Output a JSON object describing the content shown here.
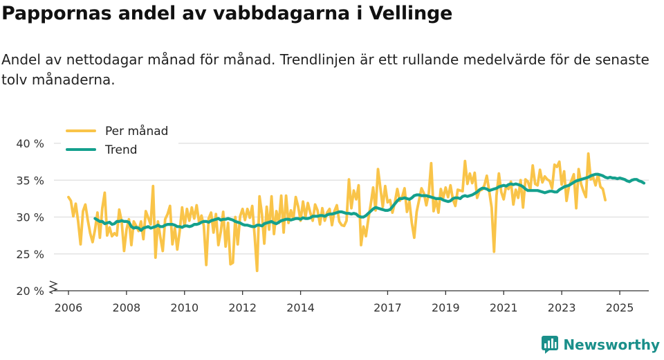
{
  "title": "Pappornas andel av vabbdagarna i Vellinge",
  "subtitle": "Andel av nettodagar månad för månad. Trendlinjen är ett rullande medelvärde för de senaste tolv månaderna.",
  "brand": "Newsworthy",
  "chart_data": {
    "type": "line",
    "title": "Pappornas andel av vabbdagarna i Vellinge",
    "xlabel": "",
    "ylabel": "",
    "ylim": [
      20,
      40
    ],
    "y_break_below": 20,
    "y_ticks": [
      20,
      25,
      30,
      35,
      40
    ],
    "y_tick_suffix": " %",
    "x_range": [
      2005.5,
      2026.0
    ],
    "x_ticks": [
      2006,
      2008,
      2010,
      2012,
      2014,
      2017,
      2019,
      2021,
      2023,
      2025
    ],
    "legend_position": "top-left",
    "colors": {
      "monthly": "#f9c449",
      "trend": "#14a08d",
      "grid": "#dedede",
      "axis": "#333333"
    },
    "series": [
      {
        "name": "Per månad",
        "start": 2006.0,
        "step_months": 1,
        "values": [
          32.7,
          32.2,
          30.1,
          31.8,
          29.4,
          26.3,
          30.8,
          31.7,
          29.6,
          27.8,
          26.6,
          28.3,
          30.6,
          27.2,
          31.2,
          33.3,
          27.5,
          28.6,
          27.4,
          27.8,
          27.5,
          31.0,
          29.4,
          25.4,
          28.3,
          29.7,
          26.2,
          29.4,
          28.8,
          28.1,
          29.4,
          27.0,
          30.8,
          29.9,
          29.0,
          34.2,
          24.5,
          29.4,
          27.3,
          25.4,
          29.7,
          30.4,
          31.5,
          26.3,
          28.5,
          25.6,
          28.1,
          31.3,
          28.7,
          31.1,
          29.5,
          31.3,
          29.8,
          31.6,
          29.3,
          30.2,
          28.8,
          23.5,
          29.8,
          30.6,
          27.9,
          30.4,
          26.2,
          28.0,
          30.7,
          26.0,
          29.2,
          23.6,
          23.8,
          30.0,
          26.3,
          30.1,
          31.1,
          29.6,
          31.1,
          29.9,
          31.5,
          27.4,
          22.7,
          32.8,
          30.4,
          26.4,
          31.4,
          28.3,
          32.8,
          27.7,
          30.8,
          29.2,
          32.9,
          27.9,
          32.9,
          29.2,
          30.9,
          29.7,
          32.7,
          31.4,
          29.5,
          32.1,
          30.0,
          31.9,
          30.6,
          29.5,
          31.7,
          30.9,
          29.0,
          31.2,
          29.5,
          30.6,
          31.1,
          28.9,
          30.8,
          31.6,
          29.4,
          28.9,
          28.8,
          29.5,
          35.1,
          31.2,
          33.6,
          32.4,
          34.3,
          26.2,
          28.7,
          27.4,
          29.7,
          31.7,
          34.0,
          30.9,
          36.5,
          33.9,
          31.4,
          34.2,
          32.0,
          32.3,
          30.6,
          32.0,
          33.8,
          32.2,
          32.7,
          33.9,
          30.7,
          32.1,
          29.2,
          27.2,
          30.7,
          32.3,
          33.9,
          33.2,
          31.6,
          33.2,
          37.3,
          30.8,
          32.3,
          30.6,
          33.8,
          32.6,
          34.0,
          32.7,
          34.3,
          32.4,
          31.5,
          33.7,
          33.6,
          33.5,
          37.6,
          34.5,
          35.9,
          34.6,
          36.0,
          32.6,
          33.6,
          33.7,
          34.3,
          35.6,
          33.5,
          31.3,
          25.3,
          32.9,
          35.9,
          33.4,
          32.4,
          34.2,
          33.8,
          34.8,
          31.7,
          33.7,
          32.6,
          35.0,
          31.3,
          35.1,
          34.8,
          33.7,
          37.0,
          34.5,
          34.3,
          36.4,
          34.7,
          35.5,
          35.1,
          34.9,
          33.9,
          37.1,
          36.8,
          37.5,
          34.4,
          36.2,
          32.2,
          34.2,
          34.9,
          35.8,
          31.2,
          36.5,
          34.5,
          33.5,
          32.7,
          38.6,
          35.1,
          35.4,
          34.3,
          35.8,
          34.1,
          33.8,
          32.3
        ]
      },
      {
        "name": "Trend",
        "start": 2006.917,
        "step_months": 1,
        "values": [
          29.8,
          29.6,
          29.4,
          29.4,
          29.1,
          29.2,
          29.3,
          29.0,
          29.1,
          29.4,
          29.4,
          29.5,
          29.4,
          29.4,
          29.3,
          28.7,
          28.5,
          28.6,
          28.5,
          28.2,
          28.5,
          28.6,
          28.7,
          28.5,
          28.6,
          28.7,
          28.9,
          28.7,
          28.7,
          28.9,
          29.0,
          29.0,
          29.0,
          28.9,
          28.7,
          28.7,
          28.6,
          28.8,
          28.8,
          28.7,
          28.8,
          29.0,
          29.0,
          29.1,
          29.3,
          29.4,
          29.4,
          29.3,
          29.5,
          29.6,
          29.7,
          29.8,
          29.6,
          29.7,
          29.7,
          29.8,
          29.7,
          29.6,
          29.4,
          29.3,
          29.2,
          29.0,
          28.9,
          28.9,
          28.8,
          28.7,
          28.7,
          28.9,
          28.9,
          28.8,
          29.1,
          29.2,
          29.3,
          29.4,
          29.2,
          29.1,
          29.3,
          29.5,
          29.6,
          29.7,
          29.7,
          29.6,
          29.7,
          29.8,
          29.8,
          29.7,
          29.9,
          29.8,
          29.8,
          29.9,
          30.1,
          30.1,
          30.1,
          30.2,
          30.2,
          30.1,
          30.3,
          30.4,
          30.4,
          30.5,
          30.6,
          30.7,
          30.7,
          30.6,
          30.5,
          30.5,
          30.4,
          30.5,
          30.4,
          30.1,
          30.0,
          30.0,
          30.2,
          30.5,
          30.8,
          31.1,
          31.3,
          31.2,
          31.1,
          31.0,
          30.9,
          30.9,
          31.0,
          31.4,
          31.8,
          32.2,
          32.5,
          32.5,
          32.6,
          32.5,
          32.4,
          32.6,
          32.9,
          33.0,
          33.0,
          32.9,
          32.9,
          32.9,
          32.8,
          32.7,
          32.6,
          32.5,
          32.5,
          32.5,
          32.3,
          32.2,
          32.1,
          32.2,
          32.5,
          32.6,
          32.6,
          32.5,
          32.8,
          32.9,
          32.8,
          32.9,
          33.0,
          33.2,
          33.4,
          33.7,
          33.9,
          33.9,
          33.8,
          33.6,
          33.7,
          33.8,
          33.9,
          34.1,
          34.2,
          34.3,
          34.2,
          34.4,
          34.5,
          34.4,
          34.5,
          34.4,
          34.3,
          34.1,
          33.8,
          33.6,
          33.6,
          33.6,
          33.6,
          33.6,
          33.5,
          33.4,
          33.3,
          33.4,
          33.5,
          33.5,
          33.4,
          33.4,
          33.7,
          33.9,
          34.1,
          34.2,
          34.3,
          34.5,
          34.7,
          34.9,
          35.0,
          35.1,
          35.2,
          35.3,
          35.4,
          35.6,
          35.7,
          35.8,
          35.8,
          35.7,
          35.6,
          35.4,
          35.3,
          35.4,
          35.3,
          35.3,
          35.2,
          35.3,
          35.2,
          35.1,
          34.9,
          34.8,
          35.0,
          35.1,
          35.1,
          34.9,
          34.8,
          34.6
        ]
      }
    ]
  }
}
